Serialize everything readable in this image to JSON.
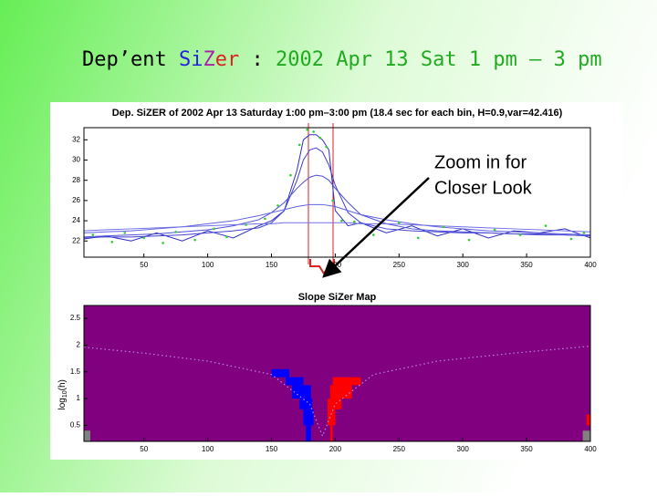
{
  "slide_title": [
    {
      "text": "Dep’ent ",
      "color": "#000000"
    },
    {
      "text": "Si",
      "color": "#2222dd"
    },
    {
      "text": "Z",
      "color": "#aa22aa"
    },
    {
      "text": "er",
      "color": "#dd2222"
    },
    {
      "text": " : ",
      "color": "#000000"
    },
    {
      "text": "2002 Apr 13 Sat 1 pm – 3 pm",
      "color": "#22aa22"
    }
  ],
  "annotation": [
    "Zoom in for",
    "Closer Look"
  ],
  "chart_data": [
    {
      "type": "line",
      "title": "Dep. SiZER of 2002 Apr 13 Saturday 1:00 pm–3:00 pm (18.4 sec for each bin, H=0.9,var=42.416)",
      "xlim": [
        3,
        400
      ],
      "ylim": [
        20.4,
        33.2
      ],
      "xticks": [
        50,
        100,
        150,
        200,
        250,
        300,
        350,
        400
      ],
      "yticks": [
        22,
        24,
        26,
        28,
        30,
        32
      ],
      "x": [
        3,
        20,
        40,
        60,
        80,
        100,
        120,
        140,
        150,
        160,
        170,
        175,
        180,
        185,
        190,
        195,
        200,
        210,
        220,
        240,
        260,
        280,
        300,
        320,
        340,
        360,
        380,
        400
      ],
      "series": [
        {
          "color": "#3030c0",
          "values": [
            22.2,
            22.5,
            22.0,
            22.8,
            22.0,
            23.0,
            22.3,
            23.5,
            24,
            25,
            29,
            32,
            32.5,
            32.5,
            32,
            31,
            25,
            23.5,
            23.8,
            22.8,
            23.5,
            22.5,
            23.2,
            22.3,
            23,
            22.8,
            23.2,
            22.3
          ]
        },
        {
          "color": "#4040d0",
          "values": [
            22.3,
            22.4,
            22.4,
            22.5,
            22.6,
            22.8,
            23.0,
            23.3,
            23.8,
            25,
            28,
            30,
            31,
            31.2,
            30.8,
            29.5,
            27.5,
            24.8,
            23.8,
            23.2,
            23,
            22.9,
            22.8,
            22.8,
            22.7,
            22.7,
            22.6,
            22.5
          ]
        },
        {
          "color": "#5050d8",
          "values": [
            22.4,
            22.5,
            22.6,
            22.7,
            22.9,
            23.1,
            23.5,
            24.1,
            24.8,
            25.8,
            27.2,
            27.8,
            28.3,
            28.5,
            28.4,
            28,
            27.2,
            25.8,
            24.6,
            23.7,
            23.2,
            23,
            22.9,
            22.8,
            22.7,
            22.6,
            22.6,
            22.5
          ]
        },
        {
          "color": "#6060e0",
          "values": [
            22.8,
            22.9,
            23,
            23.2,
            23.4,
            23.7,
            24,
            24.5,
            24.8,
            25.1,
            25.4,
            25.5,
            25.6,
            25.6,
            25.6,
            25.5,
            25.4,
            25,
            24.6,
            24.1,
            23.7,
            23.4,
            23.2,
            23,
            22.9,
            22.8,
            22.7,
            22.6
          ]
        },
        {
          "color": "#7070e8",
          "values": [
            23,
            23.1,
            23.2,
            23.3,
            23.4,
            23.5,
            23.6,
            23.7,
            23.7,
            23.8,
            23.8,
            23.8,
            23.8,
            23.8,
            23.8,
            23.8,
            23.8,
            23.8,
            23.7,
            23.7,
            23.6,
            23.5,
            23.4,
            23.3,
            23.2,
            23.1,
            23,
            22.9
          ]
        }
      ],
      "points": {
        "color": "#33cc33",
        "x": [
          10,
          25,
          35,
          50,
          65,
          75,
          90,
          105,
          115,
          130,
          145,
          155,
          165,
          172,
          178,
          183,
          188,
          193,
          198,
          205,
          215,
          230,
          250,
          265,
          285,
          305,
          325,
          345,
          365,
          385,
          395
        ],
        "values": [
          22.6,
          21.9,
          22.8,
          22.3,
          21.8,
          22.9,
          22.1,
          23.2,
          22.4,
          23.6,
          24.2,
          25.5,
          28.5,
          31.5,
          33,
          32.8,
          32.2,
          31.3,
          26,
          24,
          23.9,
          22.6,
          23.8,
          22.3,
          23.4,
          22.1,
          23.1,
          22.6,
          23.5,
          22.2,
          22.8
        ]
      }
    },
    {
      "type": "sizer-map",
      "title": "Slope SiZer Map",
      "y_label": [
        "log",
        "10",
        "(h)"
      ],
      "xlim": [
        3,
        400
      ],
      "ylim": [
        0.2,
        2.74
      ],
      "xticks": [
        50,
        100,
        150,
        200,
        250,
        300,
        350,
        400
      ],
      "yticks": [
        0.5,
        1,
        1.5,
        2,
        2.5
      ],
      "background": "#800080",
      "cells": [
        {
          "color": "#0000ff",
          "x": [
            150,
            164
          ],
          "y": [
            1.4,
            1.55
          ]
        },
        {
          "color": "#0000ff",
          "x": [
            161,
            175
          ],
          "y": [
            1.25,
            1.4
          ]
        },
        {
          "color": "#0000ff",
          "x": [
            166,
            181
          ],
          "y": [
            1.0,
            1.25
          ]
        },
        {
          "color": "#0000ff",
          "x": [
            172,
            182
          ],
          "y": [
            0.8,
            1.0
          ]
        },
        {
          "color": "#0000ff",
          "x": [
            175,
            183
          ],
          "y": [
            0.5,
            0.8
          ]
        },
        {
          "color": "#0000ff",
          "x": [
            177,
            181
          ],
          "y": [
            0.2,
            0.5
          ]
        },
        {
          "color": "#ff0000",
          "x": [
            198,
            220
          ],
          "y": [
            1.25,
            1.4
          ]
        },
        {
          "color": "#ff0000",
          "x": [
            196,
            213
          ],
          "y": [
            1.0,
            1.25
          ]
        },
        {
          "color": "#ff0000",
          "x": [
            194,
            205
          ],
          "y": [
            0.8,
            1.0
          ]
        },
        {
          "color": "#ff0000",
          "x": [
            194,
            200
          ],
          "y": [
            0.5,
            0.8
          ]
        },
        {
          "color": "#ff0000",
          "x": [
            196,
            198
          ],
          "y": [
            0.2,
            0.5
          ]
        },
        {
          "color": "#ff0000",
          "x": [
            397,
            400
          ],
          "y": [
            0.5,
            0.7
          ]
        },
        {
          "color": "#808080",
          "x": [
            3,
            8
          ],
          "y": [
            0.2,
            0.4
          ]
        },
        {
          "color": "#808080",
          "x": [
            394,
            400
          ],
          "y": [
            0.2,
            0.4
          ]
        }
      ],
      "window_curve": {
        "color": "#c080e0",
        "x": [
          3,
          50,
          100,
          150,
          180,
          190,
          200,
          230,
          280,
          340,
          400
        ],
        "values": [
          1.96,
          1.85,
          1.7,
          1.45,
          0.9,
          0.3,
          0.9,
          1.45,
          1.7,
          1.85,
          1.98
        ]
      }
    }
  ]
}
